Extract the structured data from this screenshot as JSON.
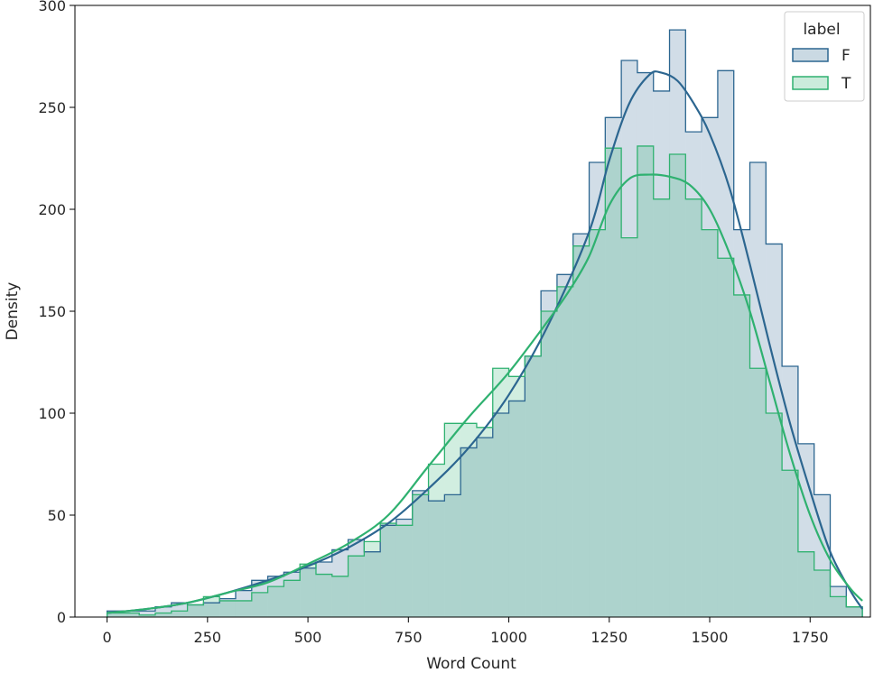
{
  "chart_data": {
    "type": "histogram",
    "xlabel": "Word Count",
    "ylabel": "Density",
    "xlim": [
      -80,
      1900
    ],
    "ylim": [
      0,
      300
    ],
    "x_ticks": [
      0,
      250,
      500,
      750,
      1000,
      1250,
      1500,
      1750
    ],
    "y_ticks": [
      0,
      50,
      100,
      150,
      200,
      250,
      300
    ],
    "legend": {
      "title": "label",
      "placement": "top-right"
    },
    "bin_edges": [
      0,
      40,
      80,
      120,
      160,
      200,
      240,
      280,
      320,
      360,
      400,
      440,
      480,
      520,
      560,
      600,
      640,
      680,
      720,
      760,
      800,
      840,
      880,
      920,
      960,
      1000,
      1040,
      1080,
      1120,
      1160,
      1200,
      1240,
      1280,
      1320,
      1360,
      1400,
      1440,
      1480,
      1520,
      1560,
      1600,
      1640,
      1680,
      1720,
      1760,
      1800,
      1840,
      1880
    ],
    "series": [
      {
        "name": "F",
        "color": "#2c6690",
        "counts": [
          3,
          3,
          3,
          5,
          7,
          6,
          7,
          9,
          13,
          18,
          20,
          22,
          24,
          27,
          33,
          38,
          32,
          45,
          48,
          62,
          57,
          60,
          83,
          88,
          100,
          106,
          128,
          160,
          168,
          188,
          223,
          245,
          273,
          267,
          258,
          288,
          238,
          245,
          268,
          190,
          223,
          183,
          123,
          85,
          60,
          15,
          5
        ],
        "kde": [
          [
            0,
            2
          ],
          [
            100,
            4
          ],
          [
            200,
            7
          ],
          [
            300,
            12
          ],
          [
            400,
            18
          ],
          [
            500,
            25
          ],
          [
            600,
            34
          ],
          [
            700,
            46
          ],
          [
            800,
            63
          ],
          [
            900,
            83
          ],
          [
            1000,
            109
          ],
          [
            1100,
            144
          ],
          [
            1200,
            189
          ],
          [
            1250,
            224
          ],
          [
            1300,
            252
          ],
          [
            1350,
            266
          ],
          [
            1380,
            267
          ],
          [
            1420,
            263
          ],
          [
            1460,
            252
          ],
          [
            1500,
            237
          ],
          [
            1550,
            210
          ],
          [
            1600,
            173
          ],
          [
            1650,
            133
          ],
          [
            1700,
            95
          ],
          [
            1750,
            62
          ],
          [
            1800,
            32
          ],
          [
            1850,
            13
          ],
          [
            1880,
            4
          ]
        ]
      },
      {
        "name": "T",
        "color": "#2fb170",
        "counts": [
          2,
          2,
          1,
          2,
          3,
          6,
          10,
          8,
          8,
          12,
          15,
          18,
          26,
          21,
          20,
          30,
          37,
          46,
          45,
          60,
          75,
          95,
          95,
          93,
          122,
          118,
          128,
          150,
          162,
          182,
          190,
          230,
          186,
          231,
          205,
          227,
          205,
          190,
          176,
          158,
          122,
          100,
          72,
          32,
          23,
          10,
          5
        ],
        "kde": [
          [
            0,
            2
          ],
          [
            100,
            4
          ],
          [
            200,
            7
          ],
          [
            300,
            12
          ],
          [
            400,
            17
          ],
          [
            500,
            26
          ],
          [
            600,
            36
          ],
          [
            700,
            50
          ],
          [
            800,
            74
          ],
          [
            900,
            98
          ],
          [
            1000,
            120
          ],
          [
            1100,
            146
          ],
          [
            1150,
            160
          ],
          [
            1200,
            177
          ],
          [
            1250,
            202
          ],
          [
            1300,
            215
          ],
          [
            1350,
            217
          ],
          [
            1400,
            216
          ],
          [
            1450,
            212
          ],
          [
            1500,
            200
          ],
          [
            1550,
            178
          ],
          [
            1600,
            150
          ],
          [
            1650,
            115
          ],
          [
            1700,
            80
          ],
          [
            1750,
            50
          ],
          [
            1800,
            28
          ],
          [
            1850,
            14
          ],
          [
            1880,
            8
          ]
        ]
      }
    ]
  }
}
